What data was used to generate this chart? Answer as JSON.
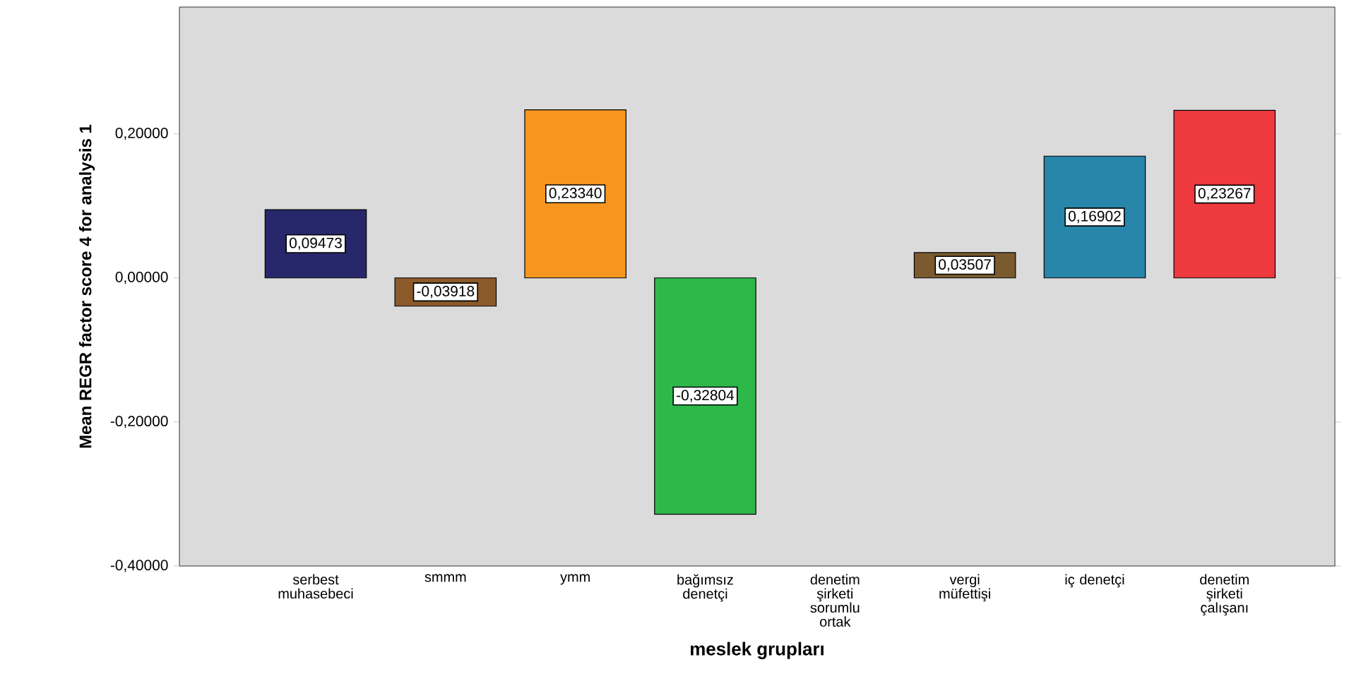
{
  "chart_data": {
    "type": "bar",
    "xlabel": "meslek grupları",
    "ylabel": "Mean REGR factor score   4 for analysis 1",
    "categories": [
      "serbest muhasebeci",
      "smmm",
      "ymm",
      "bağımsız denetçi",
      "denetim şirketi sorumlu ortak",
      "vergi müfettişi",
      "iç denetçi",
      "denetim şirketi çalışanı"
    ],
    "values": [
      0.09473,
      -0.03918,
      0.2334,
      -0.32804,
      null,
      0.03507,
      0.16902,
      0.23267
    ],
    "value_labels": [
      "0,09473",
      "-0,03918",
      "0,23340",
      "-0,32804",
      null,
      "0,03507",
      "0,16902",
      "0,23267"
    ],
    "colors": [
      "#27276b",
      "#8b5a2b",
      "#f7961e",
      "#2fb84a",
      "#888888",
      "#7a5a2e",
      "#2786a9",
      "#ee3a3e"
    ],
    "ylim": [
      -0.4,
      0.376
    ],
    "yticks": [
      {
        "value": -0.4,
        "label": "-0,40000"
      },
      {
        "value": -0.2,
        "label": "-0,20000"
      },
      {
        "value": 0,
        "label": "0,00000"
      },
      {
        "value": 0.2,
        "label": "0,20000"
      }
    ],
    "grid": false
  }
}
